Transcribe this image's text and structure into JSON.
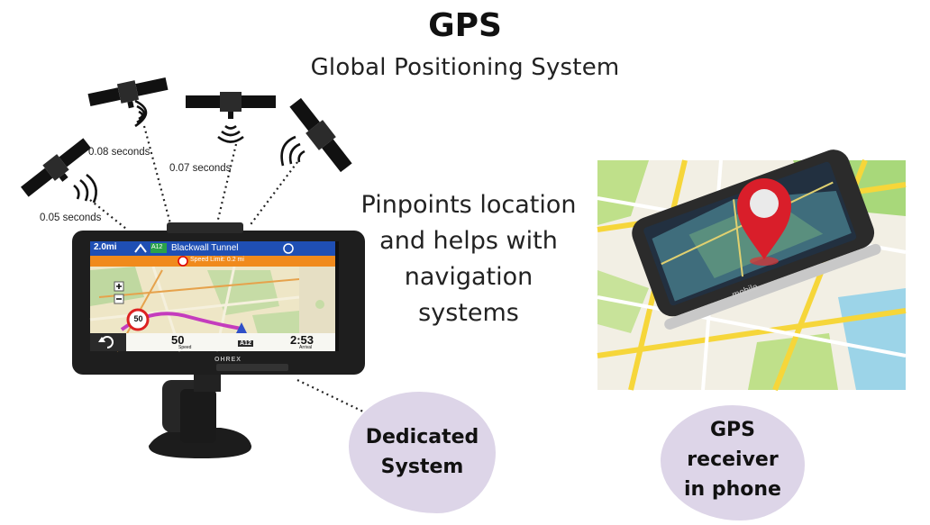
{
  "title": "GPS",
  "subtitle": "Global Positioning System",
  "description": [
    "Pinpoints location",
    "and helps with",
    "navigation",
    "systems"
  ],
  "signal_labels": [
    "0.08 seconds",
    "0.07 seconds",
    "0.05 seconds"
  ],
  "device": {
    "distance": "2.0mi",
    "road_badge": "A12",
    "street": "Blackwall Tunnel",
    "speed_notice": "Speed Limit: 0.2 mi",
    "speed_limit": "50",
    "speed": "50",
    "speed_unit": "Speed",
    "eta": "2:53",
    "eta_label": "Arrival",
    "brand": "OHREX",
    "current_road": "A12"
  },
  "phone": {
    "brand": "mobile"
  },
  "dedicated_label": [
    "Dedicated",
    "System"
  ],
  "phone_label": [
    "GPS",
    "receiver",
    "in phone"
  ]
}
